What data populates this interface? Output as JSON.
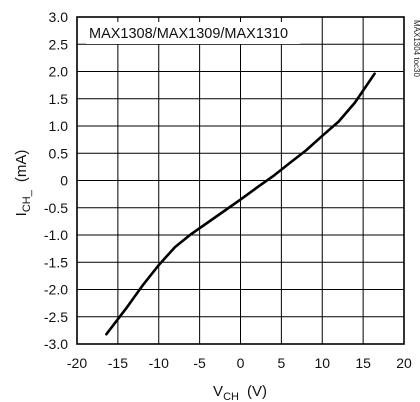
{
  "chart_data": {
    "type": "line",
    "title": "MAX1308/MAX1309/MAX1310",
    "side_tag": "MAX1304 toc30",
    "xlabel": {
      "main": "V",
      "sub": "CH",
      "unit": "(V)"
    },
    "ylabel": {
      "main": "I",
      "sub": "CH_",
      "unit": "(mA)"
    },
    "xlim": [
      -20,
      20
    ],
    "ylim": [
      -3.0,
      3.0
    ],
    "grid": true,
    "xticks": [
      "-20",
      "-15",
      "-10",
      "-5",
      "0",
      "5",
      "10",
      "15",
      "20"
    ],
    "yticks": [
      "3.0",
      "2.5",
      "2.0",
      "1.5",
      "1.0",
      "0.5",
      "0",
      "-0.5",
      "-1.0",
      "-1.5",
      "-2.0",
      "-2.5",
      "-3.0"
    ],
    "series": [
      {
        "x": [
          -16.4,
          -14,
          -12,
          -10,
          -8,
          -6,
          -4,
          -2,
          0,
          2,
          4,
          6,
          8,
          10,
          12,
          14,
          16.4
        ],
        "y": [
          -2.82,
          -2.35,
          -1.93,
          -1.55,
          -1.22,
          -0.98,
          -0.77,
          -0.56,
          -0.35,
          -0.13,
          0.08,
          0.32,
          0.55,
          0.82,
          1.08,
          1.43,
          1.96
        ]
      }
    ]
  }
}
